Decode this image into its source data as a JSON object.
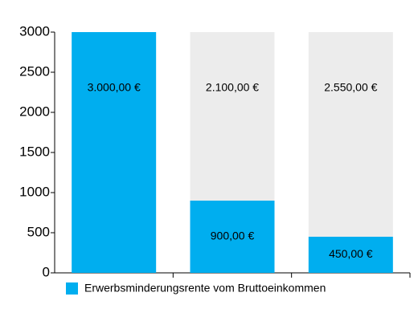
{
  "chart_data": {
    "type": "stacked-bar",
    "categories": [
      null,
      null,
      null
    ],
    "series": [
      {
        "name": "Erwerbsminderungsrente vom Bruttoeinkommen",
        "color": "#00aeef",
        "values": [
          3000,
          900,
          450
        ],
        "value_labels": [
          "3.000,00 €",
          "900,00 €",
          "450,00 €"
        ]
      },
      {
        "color": "#ececec",
        "values": [
          0,
          2100,
          2550
        ],
        "value_labels": [
          null,
          "2.100,00 €",
          "2.550,00 €"
        ]
      }
    ],
    "ylim": [
      0,
      3000
    ],
    "yticks": [
      0,
      500,
      1000,
      1500,
      2000,
      2500,
      3000
    ],
    "grid": false,
    "legend": "bottom-left"
  }
}
